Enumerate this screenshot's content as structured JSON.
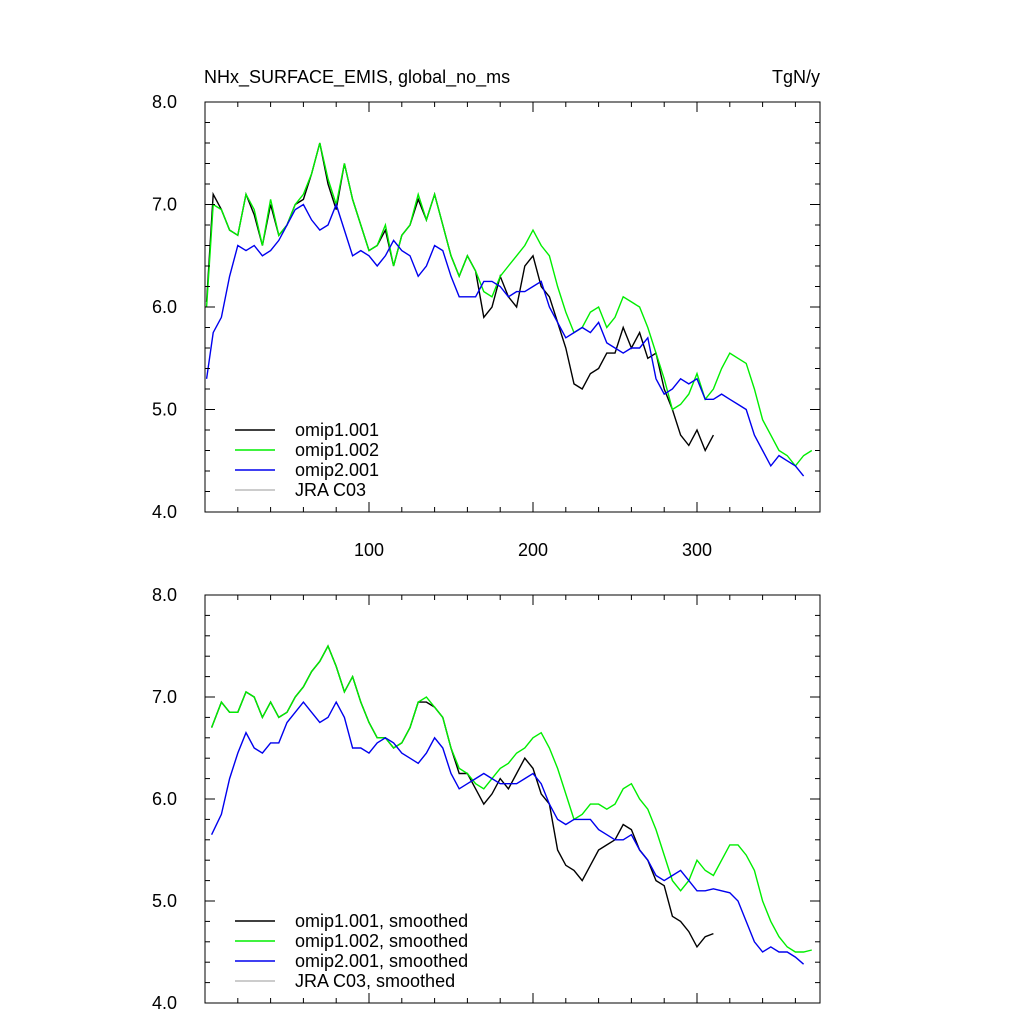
{
  "figure": {
    "title_left": "NHx_SURFACE_EMIS, global_no_ms",
    "title_right": "TgN/y"
  },
  "series_colors": {
    "omip1.001": "#000000",
    "omip1.002": "#00ee00",
    "omip2.001": "#0000ee",
    "JRA C03": "#bbbbbb"
  },
  "chart_data": [
    {
      "type": "line",
      "id": "raw",
      "title": "NHx_SURFACE_EMIS, global_no_ms",
      "units": "TgN/y",
      "xlabel": "",
      "ylabel": "",
      "xlim": [
        0,
        375
      ],
      "ylim": [
        4.0,
        8.0
      ],
      "x_ticks": [
        100,
        200,
        300
      ],
      "y_ticks": [
        4.0,
        5.0,
        6.0,
        7.0,
        8.0
      ],
      "y_tick_labels": [
        "4.0",
        "5.0",
        "6.0",
        "7.0",
        "8.0"
      ],
      "x_tick_labels": [
        "100",
        "200",
        "300"
      ],
      "legend": {
        "placement": "bottom-left",
        "entries": [
          "omip1.001",
          "omip1.002",
          "omip2.001",
          "JRA C03"
        ]
      },
      "series": [
        {
          "name": "omip1.001",
          "color": "#000000",
          "x": [
            1,
            5,
            10,
            15,
            20,
            25,
            30,
            35,
            40,
            45,
            50,
            55,
            60,
            65,
            70,
            75,
            80,
            85,
            90,
            95,
            100,
            105,
            110,
            115,
            120,
            125,
            130,
            135,
            140,
            145,
            150,
            155,
            160,
            165,
            170,
            175,
            180,
            185,
            190,
            195,
            200,
            205,
            210,
            215,
            220,
            225,
            230,
            235,
            240,
            245,
            250,
            255,
            260,
            265,
            270,
            275,
            280,
            285,
            290,
            295,
            300,
            305,
            310
          ],
          "values": [
            6.05,
            7.1,
            6.95,
            6.75,
            6.7,
            7.1,
            6.9,
            6.6,
            7.0,
            6.7,
            6.8,
            7.0,
            7.05,
            7.3,
            7.6,
            7.2,
            6.95,
            7.4,
            7.05,
            6.8,
            6.55,
            6.6,
            6.75,
            6.4,
            6.7,
            6.8,
            7.05,
            6.85,
            7.1,
            6.8,
            6.5,
            6.3,
            6.5,
            6.35,
            5.9,
            6.0,
            6.3,
            6.1,
            6.0,
            6.4,
            6.5,
            6.2,
            6.1,
            5.85,
            5.6,
            5.25,
            5.2,
            5.35,
            5.4,
            5.55,
            5.55,
            5.8,
            5.6,
            5.75,
            5.5,
            5.55,
            5.2,
            5.0,
            4.75,
            4.65,
            4.8,
            4.6,
            4.75
          ]
        },
        {
          "name": "omip1.002",
          "color": "#00ee00",
          "x": [
            1,
            5,
            10,
            15,
            20,
            25,
            30,
            35,
            40,
            45,
            50,
            55,
            60,
            65,
            70,
            75,
            80,
            85,
            90,
            95,
            100,
            105,
            110,
            115,
            120,
            125,
            130,
            135,
            140,
            145,
            150,
            155,
            160,
            165,
            170,
            175,
            180,
            185,
            190,
            195,
            200,
            205,
            210,
            215,
            220,
            225,
            230,
            235,
            240,
            245,
            250,
            255,
            260,
            265,
            270,
            275,
            280,
            285,
            290,
            295,
            300,
            305,
            310,
            315,
            320,
            325,
            330,
            335,
            340,
            345,
            350,
            355,
            360,
            365,
            370
          ],
          "values": [
            6.0,
            7.0,
            6.95,
            6.75,
            6.7,
            7.1,
            6.95,
            6.6,
            7.05,
            6.7,
            6.8,
            7.0,
            7.1,
            7.3,
            7.6,
            7.25,
            7.0,
            7.4,
            7.05,
            6.8,
            6.55,
            6.6,
            6.8,
            6.4,
            6.7,
            6.8,
            7.1,
            6.85,
            7.1,
            6.8,
            6.5,
            6.3,
            6.5,
            6.35,
            6.15,
            6.1,
            6.3,
            6.4,
            6.5,
            6.6,
            6.75,
            6.6,
            6.5,
            6.2,
            5.95,
            5.75,
            5.8,
            5.95,
            6.0,
            5.8,
            5.9,
            6.1,
            6.05,
            6.0,
            5.8,
            5.55,
            5.3,
            5.0,
            5.05,
            5.15,
            5.35,
            5.1,
            5.2,
            5.4,
            5.55,
            5.5,
            5.45,
            5.2,
            4.9,
            4.75,
            4.6,
            4.55,
            4.45,
            4.55,
            4.6
          ]
        },
        {
          "name": "omip2.001",
          "color": "#0000ee",
          "x": [
            1,
            5,
            10,
            15,
            20,
            25,
            30,
            35,
            40,
            45,
            50,
            55,
            60,
            65,
            70,
            75,
            80,
            85,
            90,
            95,
            100,
            105,
            110,
            115,
            120,
            125,
            130,
            135,
            140,
            145,
            150,
            155,
            160,
            165,
            170,
            175,
            180,
            185,
            190,
            195,
            200,
            205,
            210,
            215,
            220,
            225,
            230,
            235,
            240,
            245,
            250,
            255,
            260,
            265,
            270,
            275,
            280,
            285,
            290,
            295,
            300,
            305,
            310,
            315,
            320,
            325,
            330,
            335,
            340,
            345,
            350,
            355,
            360,
            365
          ],
          "values": [
            5.3,
            5.75,
            5.9,
            6.3,
            6.6,
            6.55,
            6.6,
            6.5,
            6.55,
            6.65,
            6.8,
            6.95,
            7.0,
            6.85,
            6.75,
            6.8,
            7.0,
            6.75,
            6.5,
            6.55,
            6.5,
            6.4,
            6.5,
            6.65,
            6.55,
            6.5,
            6.3,
            6.4,
            6.6,
            6.55,
            6.3,
            6.1,
            6.1,
            6.1,
            6.25,
            6.25,
            6.2,
            6.1,
            6.15,
            6.15,
            6.2,
            6.25,
            6.0,
            5.85,
            5.7,
            5.75,
            5.8,
            5.75,
            5.85,
            5.65,
            5.6,
            5.55,
            5.6,
            5.6,
            5.7,
            5.3,
            5.15,
            5.2,
            5.3,
            5.25,
            5.3,
            5.1,
            5.1,
            5.15,
            5.1,
            5.05,
            5.0,
            4.75,
            4.6,
            4.45,
            4.55,
            4.5,
            4.45,
            4.35
          ]
        },
        {
          "name": "JRA C03",
          "color": "#bbbbbb",
          "x": [],
          "values": []
        }
      ]
    },
    {
      "type": "line",
      "id": "smoothed",
      "title": "",
      "xlabel": "",
      "ylabel": "",
      "xlim": [
        0,
        375
      ],
      "ylim": [
        4.0,
        8.0
      ],
      "x_ticks": [
        100,
        200,
        300
      ],
      "y_ticks": [
        4.0,
        5.0,
        6.0,
        7.0,
        8.0
      ],
      "y_tick_labels": [
        "4.0",
        "5.0",
        "6.0",
        "7.0",
        "8.0"
      ],
      "legend": {
        "placement": "bottom-left",
        "entries": [
          "omip1.001, smoothed",
          "omip1.002, smoothed",
          "omip2.001, smoothed",
          "JRA C03, smoothed"
        ]
      },
      "series": [
        {
          "name": "omip1.001, smoothed",
          "color": "#000000",
          "x": [
            4,
            10,
            15,
            20,
            25,
            30,
            35,
            40,
            45,
            50,
            55,
            60,
            65,
            70,
            75,
            80,
            85,
            90,
            95,
            100,
            105,
            110,
            115,
            120,
            125,
            130,
            135,
            140,
            145,
            150,
            155,
            160,
            165,
            170,
            175,
            180,
            185,
            190,
            195,
            200,
            205,
            210,
            215,
            220,
            225,
            230,
            235,
            240,
            245,
            250,
            255,
            260,
            265,
            270,
            275,
            280,
            285,
            290,
            295,
            300,
            305,
            310
          ],
          "values": [
            6.7,
            6.95,
            6.85,
            6.85,
            7.05,
            7.0,
            6.8,
            6.95,
            6.8,
            6.85,
            7.0,
            7.1,
            7.25,
            7.35,
            7.5,
            7.3,
            7.05,
            7.2,
            6.95,
            6.75,
            6.6,
            6.6,
            6.5,
            6.55,
            6.7,
            6.95,
            6.95,
            6.9,
            6.8,
            6.5,
            6.25,
            6.25,
            6.1,
            5.95,
            6.05,
            6.2,
            6.1,
            6.25,
            6.4,
            6.3,
            6.05,
            5.95,
            5.5,
            5.35,
            5.3,
            5.2,
            5.35,
            5.5,
            5.55,
            5.6,
            5.75,
            5.7,
            5.5,
            5.4,
            5.2,
            5.15,
            4.85,
            4.8,
            4.7,
            4.55,
            4.65,
            4.68
          ]
        },
        {
          "name": "omip1.002, smoothed",
          "color": "#00ee00",
          "x": [
            4,
            10,
            15,
            20,
            25,
            30,
            35,
            40,
            45,
            50,
            55,
            60,
            65,
            70,
            75,
            80,
            85,
            90,
            95,
            100,
            105,
            110,
            115,
            120,
            125,
            130,
            135,
            140,
            145,
            150,
            155,
            160,
            165,
            170,
            175,
            180,
            185,
            190,
            195,
            200,
            205,
            210,
            215,
            220,
            225,
            230,
            235,
            240,
            245,
            250,
            255,
            260,
            265,
            270,
            275,
            280,
            285,
            290,
            295,
            300,
            305,
            310,
            315,
            320,
            325,
            330,
            335,
            340,
            345,
            350,
            355,
            360,
            365,
            370
          ],
          "values": [
            6.7,
            6.95,
            6.85,
            6.85,
            7.05,
            7.0,
            6.8,
            6.95,
            6.8,
            6.85,
            7.0,
            7.1,
            7.25,
            7.35,
            7.5,
            7.3,
            7.05,
            7.2,
            6.95,
            6.75,
            6.6,
            6.6,
            6.5,
            6.55,
            6.7,
            6.95,
            7.0,
            6.9,
            6.8,
            6.5,
            6.3,
            6.25,
            6.15,
            6.1,
            6.2,
            6.3,
            6.35,
            6.45,
            6.5,
            6.6,
            6.65,
            6.5,
            6.3,
            6.05,
            5.8,
            5.85,
            5.95,
            5.95,
            5.9,
            5.95,
            6.1,
            6.15,
            6.0,
            5.9,
            5.7,
            5.45,
            5.2,
            5.1,
            5.2,
            5.4,
            5.3,
            5.25,
            5.4,
            5.55,
            5.55,
            5.45,
            5.3,
            5.0,
            4.8,
            4.65,
            4.55,
            4.5,
            4.5,
            4.52
          ]
        },
        {
          "name": "omip2.001, smoothed",
          "color": "#0000ee",
          "x": [
            4,
            10,
            15,
            20,
            25,
            30,
            35,
            40,
            45,
            50,
            55,
            60,
            65,
            70,
            75,
            80,
            85,
            90,
            95,
            100,
            105,
            110,
            115,
            120,
            125,
            130,
            135,
            140,
            145,
            150,
            155,
            160,
            165,
            170,
            175,
            180,
            185,
            190,
            195,
            200,
            205,
            210,
            215,
            220,
            225,
            230,
            235,
            240,
            245,
            250,
            255,
            260,
            265,
            270,
            275,
            280,
            285,
            290,
            295,
            300,
            305,
            310,
            315,
            320,
            325,
            330,
            335,
            340,
            345,
            350,
            355,
            360,
            365
          ],
          "values": [
            5.65,
            5.85,
            6.2,
            6.45,
            6.65,
            6.5,
            6.45,
            6.55,
            6.55,
            6.75,
            6.85,
            6.95,
            6.85,
            6.75,
            6.8,
            6.95,
            6.8,
            6.5,
            6.5,
            6.45,
            6.55,
            6.6,
            6.55,
            6.45,
            6.4,
            6.35,
            6.45,
            6.6,
            6.5,
            6.25,
            6.1,
            6.15,
            6.2,
            6.25,
            6.2,
            6.15,
            6.15,
            6.15,
            6.2,
            6.25,
            6.15,
            5.95,
            5.8,
            5.75,
            5.8,
            5.8,
            5.8,
            5.7,
            5.65,
            5.6,
            5.6,
            5.65,
            5.5,
            5.4,
            5.25,
            5.2,
            5.25,
            5.3,
            5.2,
            5.1,
            5.1,
            5.12,
            5.1,
            5.08,
            5.0,
            4.8,
            4.6,
            4.5,
            4.55,
            4.5,
            4.5,
            4.45,
            4.38
          ]
        },
        {
          "name": "JRA C03, smoothed",
          "color": "#bbbbbb",
          "x": [],
          "values": []
        }
      ]
    }
  ]
}
